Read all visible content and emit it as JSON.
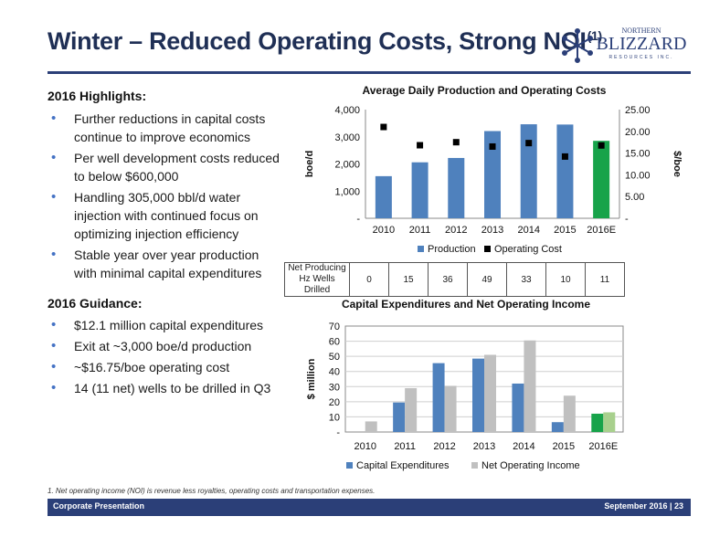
{
  "header": {
    "title": "Winter – Reduced Operating Costs, Strong NOI",
    "title_sup": "(1)",
    "logo_top": "NORTHERN",
    "logo_main": "BLIZZARD",
    "logo_bottom": "RESOURCES INC.",
    "colors": {
      "title": "#1f2f55",
      "rule": "#2b3f78"
    }
  },
  "highlights": {
    "heading": "2016 Highlights:",
    "items": [
      "Further reductions in capital costs continue to improve economics",
      "Per well development costs reduced to below $600,000",
      "Handling 305,000 bbl/d water injection with continued focus on optimizing injection efficiency",
      "Stable year over year production with minimal capital expenditures"
    ]
  },
  "guidance": {
    "heading": "2016 Guidance:",
    "items": [
      "$12.1 million capital expenditures",
      "Exit at ~3,000 boe/d production",
      "~$16.75/boe operating cost",
      "14 (11 net) wells to be drilled in Q3"
    ]
  },
  "chart_data": [
    {
      "type": "bar",
      "title": "Average Daily Production and Operating Costs",
      "categories": [
        "2010",
        "2011",
        "2012",
        "2013",
        "2014",
        "2015",
        "2016E"
      ],
      "series": [
        {
          "name": "Production",
          "axis": "left",
          "values": [
            1550,
            2060,
            2220,
            3210,
            3460,
            3450,
            2850
          ],
          "color": "#4f81bd",
          "highlight_color": "#17a34a"
        },
        {
          "name": "Operating Cost",
          "axis": "right",
          "marker": "square",
          "values": [
            21.0,
            16.8,
            17.5,
            16.5,
            17.3,
            14.2,
            16.75
          ],
          "color": "#000000"
        }
      ],
      "ylabel": "boe/d",
      "y2label": "$/boe",
      "ylim": [
        0,
        4000
      ],
      "y2lim": [
        0,
        25
      ],
      "yticks": [
        "-",
        "1,000",
        "2,000",
        "3,000",
        "4,000"
      ],
      "y2ticks": [
        "-",
        "5.00",
        "10.00",
        "15.00",
        "20.00",
        "25.00"
      ],
      "legend": "bottom",
      "grid": false
    },
    {
      "type": "bar",
      "title": "Capital Expenditures and Net Operating Income",
      "categories": [
        "2010",
        "2011",
        "2012",
        "2013",
        "2014",
        "2015",
        "2016E"
      ],
      "series": [
        {
          "name": "Capital Expenditures",
          "values": [
            0,
            19.5,
            45.5,
            48.5,
            32,
            6.5,
            12.1
          ],
          "color": "#4f81bd",
          "highlight_color": "#17a34a"
        },
        {
          "name": "Net Operating Income",
          "values": [
            7,
            29,
            30.5,
            51,
            60.5,
            24,
            13
          ],
          "color": "#c0c0c0",
          "highlight_color": "#a8d08d"
        }
      ],
      "ylabel": "$ million",
      "ylim": [
        0,
        70
      ],
      "yticks": [
        "-",
        "10",
        "20",
        "30",
        "40",
        "50",
        "60",
        "70"
      ],
      "legend": "bottom",
      "grid": true
    }
  ],
  "wells_table": {
    "header": [
      "Net Producing",
      "Hz Wells Drilled"
    ],
    "values": [
      "0",
      "15",
      "36",
      "49",
      "33",
      "10",
      "11"
    ]
  },
  "footnote": "1.   Net operating income (NOI) is revenue less royalties, operating costs and transportation expenses.",
  "footer": {
    "left": "Corporate Presentation",
    "right": "September 2016  |  23"
  }
}
